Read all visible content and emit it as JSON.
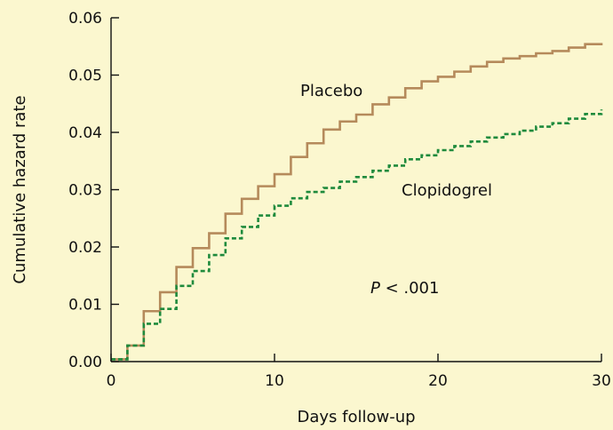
{
  "chart_data": {
    "type": "line",
    "title": "",
    "xlabel": "Days follow-up",
    "ylabel": "Cumulative hazard rate",
    "xlim": [
      0,
      30
    ],
    "ylim": [
      0,
      0.06
    ],
    "x_ticks": [
      "0",
      "10",
      "20",
      "30"
    ],
    "y_ticks": [
      "0.00",
      "0.01",
      "0.02",
      "0.03",
      "0.04",
      "0.05",
      "0.06"
    ],
    "step": true,
    "grid": false,
    "series": [
      {
        "name": "Placebo",
        "color": "#b58a5b",
        "dash": "solid",
        "x": [
          0,
          1,
          2,
          3,
          4,
          5,
          6,
          7,
          8,
          9,
          10,
          11,
          12,
          13,
          14,
          15,
          16,
          17,
          18,
          19,
          20,
          21,
          22,
          23,
          24,
          25,
          26,
          27,
          28,
          29,
          30
        ],
        "y": [
          0.0004,
          0.0028,
          0.0088,
          0.0121,
          0.0165,
          0.0198,
          0.0224,
          0.0258,
          0.0284,
          0.0306,
          0.0327,
          0.0357,
          0.0381,
          0.0405,
          0.0419,
          0.0431,
          0.0449,
          0.0461,
          0.0477,
          0.0489,
          0.0497,
          0.0506,
          0.0515,
          0.0523,
          0.0529,
          0.0533,
          0.0538,
          0.0542,
          0.0548,
          0.0554,
          0.0556
        ]
      },
      {
        "name": "Clopidogrel",
        "color": "#1e8a3c",
        "dash": "dashed",
        "x": [
          0,
          1,
          2,
          3,
          4,
          5,
          6,
          7,
          8,
          9,
          10,
          11,
          12,
          13,
          14,
          15,
          16,
          17,
          18,
          19,
          20,
          21,
          22,
          23,
          24,
          25,
          26,
          27,
          28,
          29,
          30
        ],
        "y": [
          0.0004,
          0.0028,
          0.0066,
          0.0092,
          0.0132,
          0.0158,
          0.0186,
          0.0215,
          0.0235,
          0.0255,
          0.0272,
          0.0285,
          0.0296,
          0.0303,
          0.0314,
          0.0322,
          0.0333,
          0.0342,
          0.0353,
          0.036,
          0.0369,
          0.0376,
          0.0384,
          0.0391,
          0.0397,
          0.0403,
          0.041,
          0.0416,
          0.0424,
          0.0432,
          0.044
        ]
      }
    ],
    "annotation": "P < .001",
    "annotation_italic_prefix": "P",
    "annotation_rest": " < .001"
  }
}
